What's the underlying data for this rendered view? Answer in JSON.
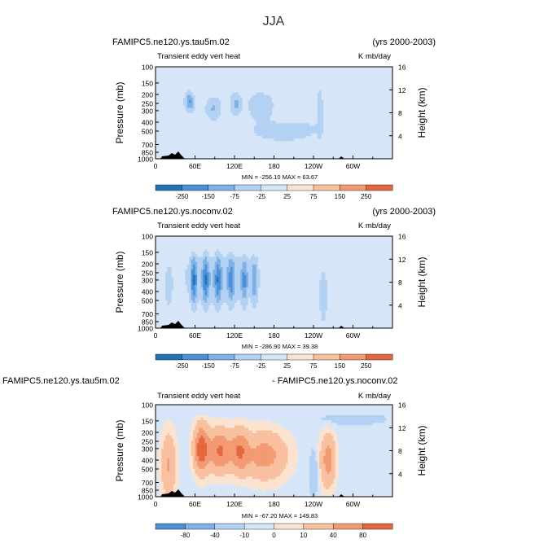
{
  "title": "JJA",
  "chart_data": [
    {
      "type": "heatmap",
      "case_left": "FAMIPC5.ne120.ys.tau5m.02",
      "case_right": "(yrs 2000-2003)",
      "field_label": "Transient eddy vert heat",
      "units": "K mb/day",
      "ylabel": "Pressure (mb)",
      "y2label": "Height (km)",
      "x_ticks": [
        "0",
        "60E",
        "120E",
        "180",
        "120W",
        "60W"
      ],
      "p_ticks": [
        "100",
        "150",
        "200",
        "250",
        "300",
        "400",
        "500",
        "700",
        "850",
        "1000"
      ],
      "h_ticks": [
        "4",
        "8",
        "12",
        "16"
      ],
      "stats": "MIN = -256.10   MAX =  63.67",
      "min": -256.1,
      "max": 63.67,
      "colorbar_labels": [
        "-250",
        "-150",
        "-75",
        "-25",
        "25",
        "75",
        "150",
        "250"
      ],
      "levels": [
        -250,
        -150,
        -75,
        -25,
        25,
        75,
        150,
        250
      ]
    },
    {
      "type": "heatmap",
      "case_left": "FAMIPC5.ne120.ys.noconv.02",
      "case_right": "(yrs 2000-2003)",
      "field_label": "Transient eddy vert heat",
      "units": "K mb/day",
      "ylabel": "Pressure (mb)",
      "y2label": "Height (km)",
      "x_ticks": [
        "0",
        "60E",
        "120E",
        "180",
        "120W",
        "60W"
      ],
      "p_ticks": [
        "100",
        "150",
        "200",
        "250",
        "300",
        "400",
        "500",
        "700",
        "850",
        "1000"
      ],
      "h_ticks": [
        "4",
        "8",
        "12",
        "16"
      ],
      "stats": "MIN = -286.90   MAX =  39.38",
      "min": -286.9,
      "max": 39.38,
      "colorbar_labels": [
        "-250",
        "-150",
        "-75",
        "-25",
        "25",
        "75",
        "150",
        "250"
      ],
      "levels": [
        -250,
        -150,
        -75,
        -25,
        25,
        75,
        150,
        250
      ]
    },
    {
      "type": "heatmap",
      "case_left": "FAMIPC5.ne120.ys.tau5m.02",
      "case_right": "- FAMIPC5.ne120.ys.noconv.02",
      "field_label": "Transient eddy vert heat",
      "units": "K mb/day",
      "ylabel": "Pressure (mb)",
      "y2label": "Height (km)",
      "x_ticks": [
        "0",
        "60E",
        "120E",
        "180",
        "120W",
        "60W"
      ],
      "p_ticks": [
        "100",
        "150",
        "200",
        "250",
        "300",
        "400",
        "500",
        "700",
        "850",
        "1000"
      ],
      "h_ticks": [
        "4",
        "8",
        "12",
        "16"
      ],
      "stats": "MIN = -67.20   MAX = 149.83",
      "min": -67.2,
      "max": 149.83,
      "colorbar_labels": [
        "-80",
        "-40",
        "-10",
        "0",
        "10",
        "40",
        "80"
      ],
      "levels": [
        -80,
        -40,
        -10,
        0,
        10,
        40,
        80
      ]
    }
  ],
  "colors": {
    "palette": [
      "#08306b",
      "#08519c",
      "#2171b5",
      "#4a90d9",
      "#7fb0e6",
      "#b3d1f2",
      "#d6e6f8",
      "#fbe3d0",
      "#f9c0a0",
      "#f39a72",
      "#e3683f",
      "#c73a20",
      "#a11a0c",
      "#7a0a03"
    ],
    "topography": "#000000"
  }
}
